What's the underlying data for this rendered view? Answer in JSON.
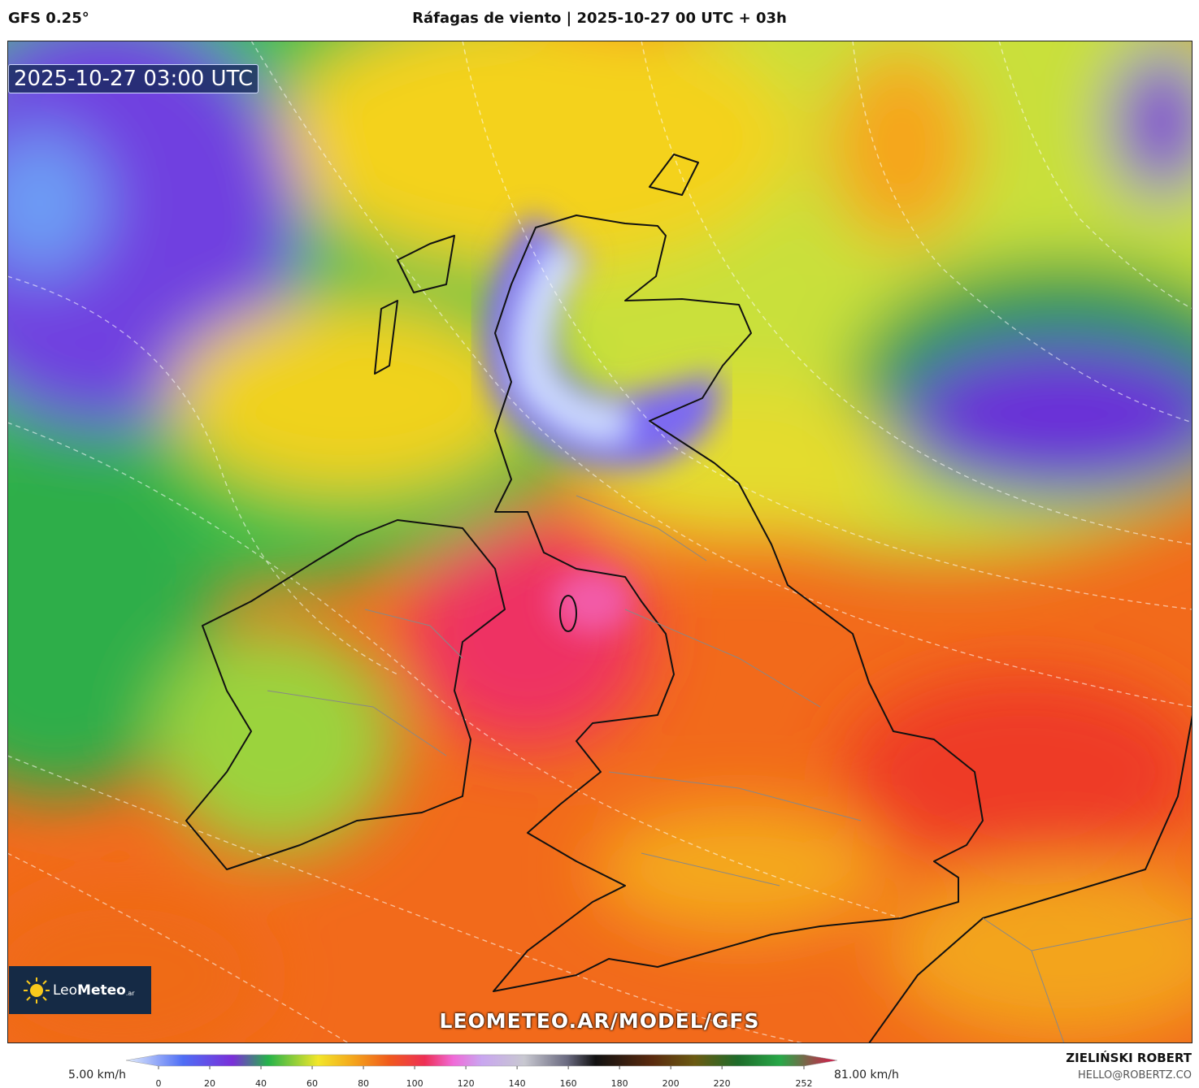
{
  "header": {
    "model": "GFS 0.25°",
    "title": "Ráfagas de viento | 2025-10-27 00 UTC + 03h"
  },
  "map": {
    "timestamp": "2025-10-27 03:00 UTC",
    "logo": {
      "light": "Leo",
      "bold": "Meteo",
      "suffix": ".ar"
    },
    "watermark": "LEOMETEO.AR/MODEL/GFS"
  },
  "colorbar": {
    "min_label": "5.00 km/h",
    "max_label": "81.00 km/h",
    "ticks": [
      0,
      20,
      40,
      60,
      80,
      100,
      120,
      140,
      160,
      180,
      200,
      220,
      252
    ]
  },
  "credits": {
    "author": "ZIELIŃSKI ROBERT",
    "email": "HELLO@ROBERTZ.CO"
  }
}
